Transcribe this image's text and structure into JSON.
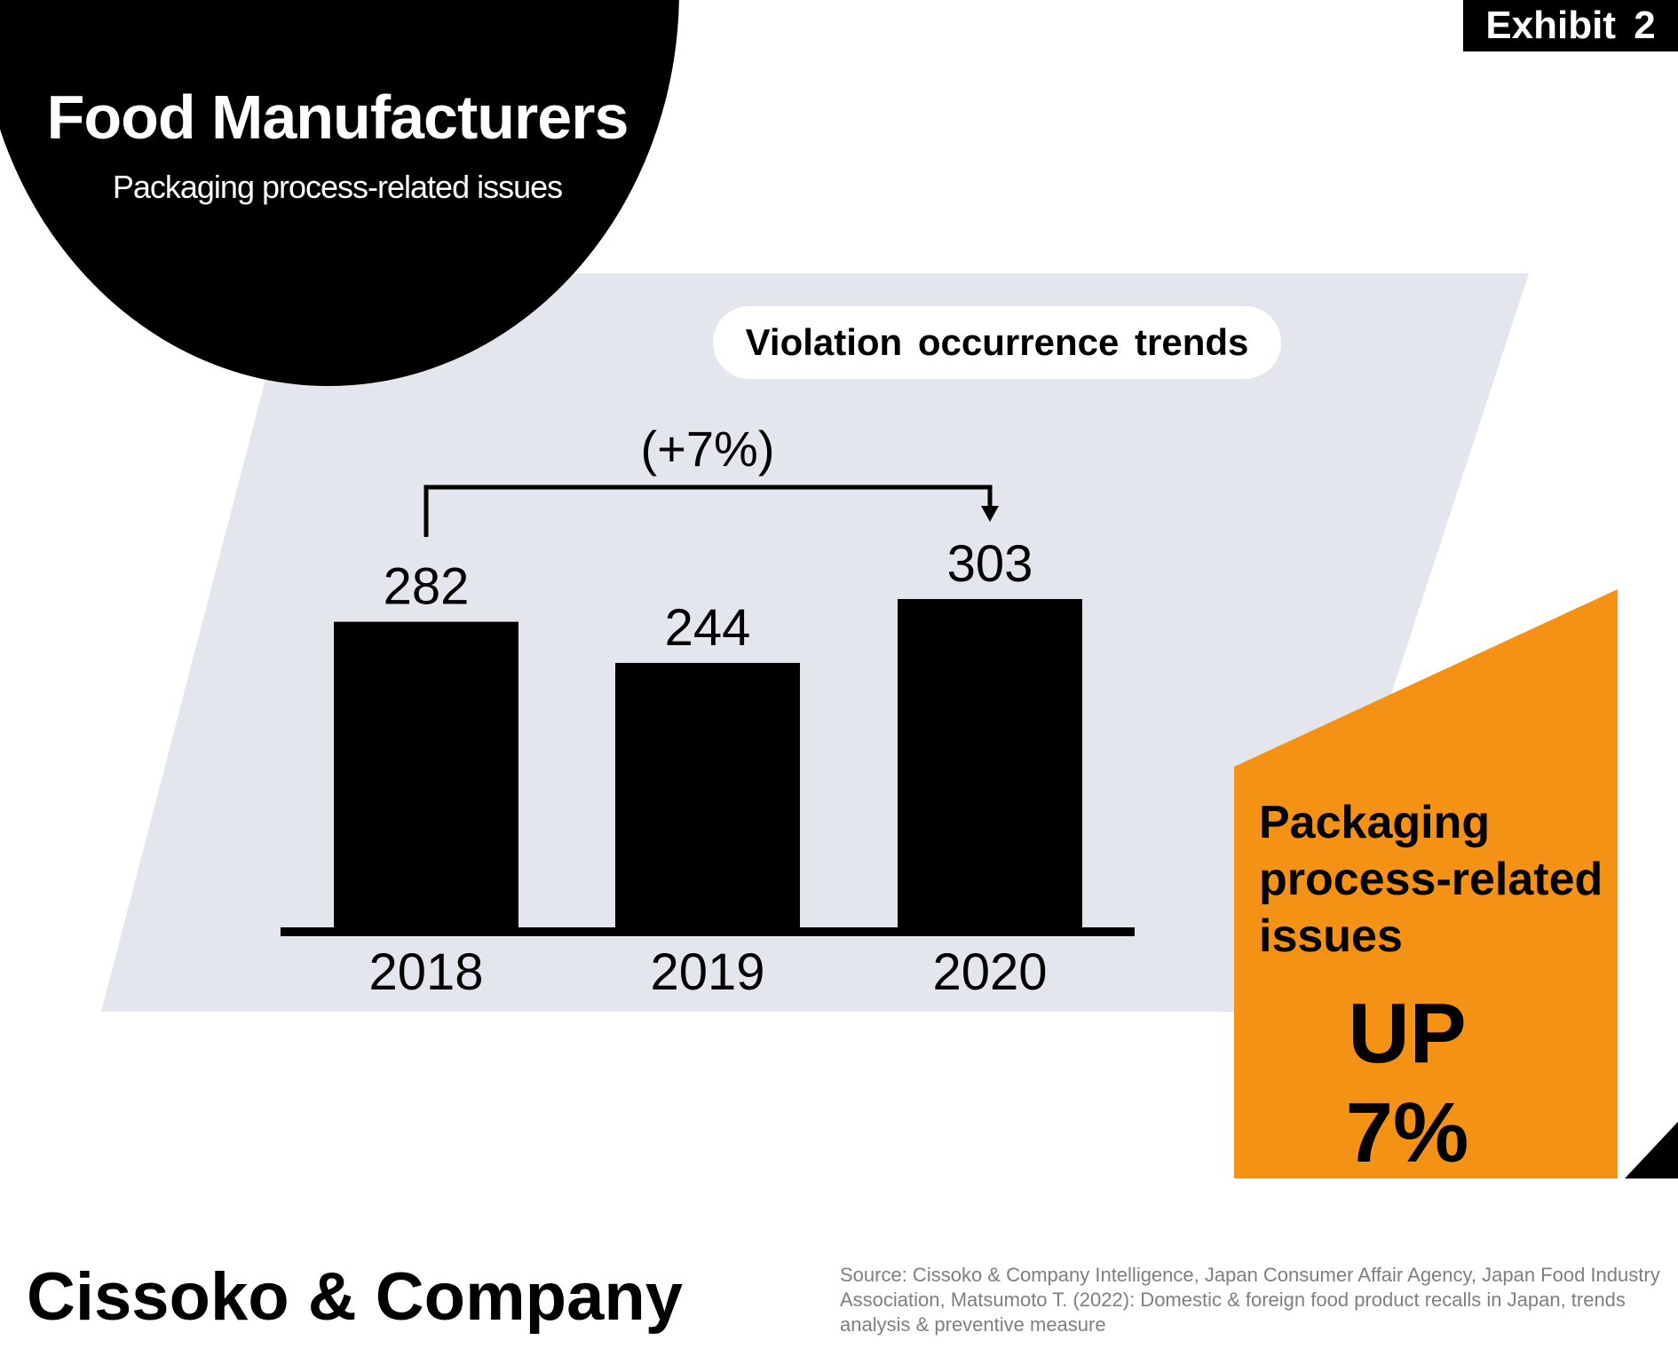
{
  "exhibit_label": "Exhibit 2",
  "circle": {
    "title": "Food Manufacturers",
    "subtitle": "Packaging process-related issues"
  },
  "chart_data": {
    "type": "bar",
    "title": "Violation occurrence trends",
    "categories": [
      "2018",
      "2019",
      "2020"
    ],
    "values": [
      282,
      244,
      303
    ],
    "data_labels": [
      "282",
      "244",
      "303"
    ],
    "xlabel": "",
    "ylabel": "",
    "ylim": [
      0,
      303
    ],
    "grid": false,
    "legend": "none",
    "annotation": {
      "text": "(+7%)",
      "from_category": "2018",
      "to_category": "2020"
    },
    "bar_color": "#000000"
  },
  "callout": {
    "heading": "Packaging process-related issues",
    "big_line1": "UP",
    "big_line2": "7%"
  },
  "footer": {
    "company": "Cissoko & Company",
    "source": "Source: Cissoko & Company Intelligence, Japan Consumer Affair Agency, Japan Food Industry Association, Matsumoto T. (2022): Domestic & foreign food product recalls in Japan, trends analysis & preventive measure"
  },
  "colors": {
    "panel": "#e4e6ed",
    "accent": "#f39214",
    "dark": "#000000"
  }
}
